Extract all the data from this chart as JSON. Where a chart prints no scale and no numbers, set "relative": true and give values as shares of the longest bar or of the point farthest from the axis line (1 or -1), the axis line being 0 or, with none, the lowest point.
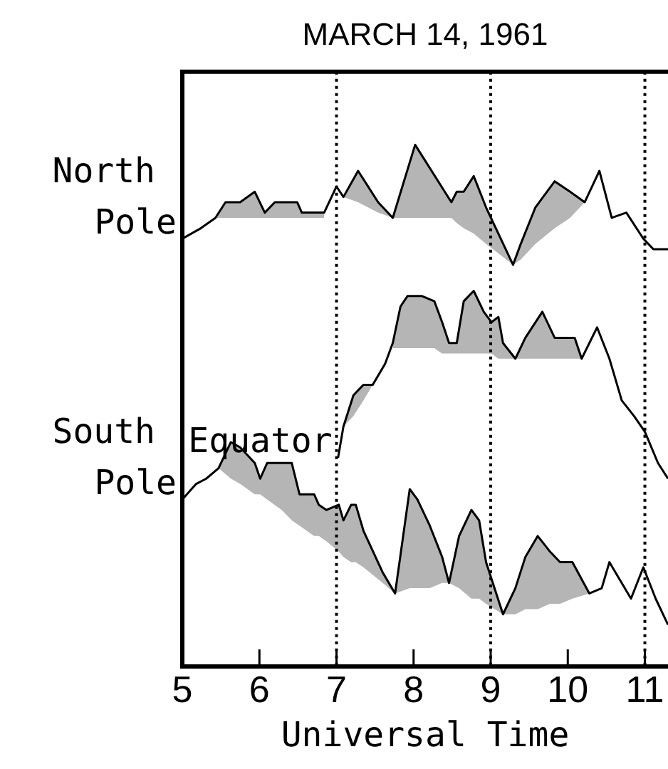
{
  "chart_data": {
    "type": "line",
    "title": "MARCH 14, 1961",
    "xlabel": "Universal Time",
    "relative": true,
    "xlim": [
      5,
      11.3
    ],
    "xticks": [
      5,
      6,
      7,
      8,
      9,
      10,
      11
    ],
    "legend": false,
    "line_style": "solid",
    "ref_lines": [
      {
        "axis": "x",
        "value": 7,
        "line_style": "dotted",
        "color": "#000000"
      },
      {
        "axis": "x",
        "value": 9,
        "line_style": "dotted",
        "color": "#000000"
      },
      {
        "axis": "x",
        "value": 11,
        "line_style": "dotted",
        "color": "#000000"
      }
    ],
    "series": [
      {
        "name": "North Pole",
        "color": "#000000",
        "x": [
          5.0,
          5.24,
          5.43,
          5.56,
          5.75,
          5.94,
          6.07,
          6.2,
          6.42,
          6.49,
          6.55,
          6.71,
          6.84,
          7.0,
          7.09,
          7.28,
          7.54,
          7.73,
          8.02,
          8.49,
          8.56,
          8.65,
          8.78,
          8.94,
          9.29,
          9.39,
          9.58,
          9.83,
          10.03,
          10.22,
          10.41,
          10.57,
          10.76,
          10.98,
          11.11,
          11.3
        ],
        "values": [
          0.82,
          0.84,
          0.86,
          0.89,
          0.89,
          0.91,
          0.87,
          0.89,
          0.89,
          0.89,
          0.87,
          0.87,
          0.87,
          0.92,
          0.9,
          0.95,
          0.89,
          0.86,
          1.0,
          0.89,
          0.91,
          0.91,
          0.94,
          0.88,
          0.77,
          0.81,
          0.88,
          0.93,
          0.91,
          0.89,
          0.95,
          0.86,
          0.87,
          0.82,
          0.8,
          0.8
        ],
        "lower": [
          null,
          null,
          0.86,
          0.86,
          0.86,
          0.86,
          0.86,
          0.86,
          0.86,
          0.86,
          0.86,
          0.86,
          0.86,
          null,
          0.9,
          0.89,
          0.87,
          0.86,
          0.86,
          0.86,
          0.85,
          0.84,
          0.83,
          0.81,
          0.77,
          0.78,
          0.81,
          0.84,
          0.86,
          0.89,
          null,
          null,
          null,
          null,
          null,
          null
        ],
        "upper": [
          null,
          null,
          0.86,
          0.89,
          0.89,
          0.91,
          0.87,
          0.89,
          0.89,
          0.89,
          0.87,
          0.87,
          0.87,
          null,
          0.9,
          0.95,
          0.89,
          0.86,
          1.0,
          0.89,
          0.91,
          0.91,
          0.94,
          0.88,
          0.77,
          0.81,
          0.88,
          0.93,
          0.91,
          0.89,
          null,
          null,
          null,
          null,
          null,
          null
        ]
      },
      {
        "name": "Equator",
        "color": "#000000",
        "x": [
          7.02,
          7.09,
          7.22,
          7.35,
          7.47,
          7.63,
          7.73,
          7.83,
          7.92,
          8.11,
          8.27,
          8.37,
          8.46,
          8.56,
          8.65,
          8.78,
          8.91,
          9.01,
          9.1,
          9.16,
          9.32,
          9.45,
          9.67,
          9.83,
          10.03,
          10.09,
          10.18,
          10.38,
          10.54,
          10.7,
          10.86,
          11.0,
          11.17,
          11.3
        ],
        "values": [
          0.4,
          0.46,
          0.52,
          0.54,
          0.54,
          0.58,
          0.62,
          0.69,
          0.71,
          0.71,
          0.7,
          0.66,
          0.62,
          0.62,
          0.7,
          0.72,
          0.68,
          0.66,
          0.67,
          0.62,
          0.59,
          0.63,
          0.68,
          0.63,
          0.63,
          0.63,
          0.59,
          0.65,
          0.59,
          0.51,
          0.48,
          0.45,
          0.39,
          0.36
        ],
        "lower": [
          null,
          0.46,
          0.48,
          0.51,
          0.54,
          null,
          0.61,
          0.61,
          0.61,
          0.61,
          0.61,
          0.6,
          0.6,
          0.6,
          0.6,
          0.6,
          0.6,
          0.6,
          0.59,
          0.59,
          0.59,
          0.59,
          0.59,
          0.59,
          0.59,
          0.59,
          0.59,
          null,
          null,
          null,
          null,
          null,
          null,
          null
        ],
        "upper": [
          null,
          0.46,
          0.52,
          0.54,
          0.54,
          null,
          0.62,
          0.69,
          0.71,
          0.71,
          0.7,
          0.66,
          0.62,
          0.62,
          0.7,
          0.72,
          0.68,
          0.66,
          0.67,
          0.62,
          0.59,
          0.63,
          0.68,
          0.63,
          0.63,
          0.63,
          0.59,
          null,
          null,
          null,
          null,
          null,
          null,
          null
        ]
      },
      {
        "name": "South Pole",
        "color": "#000000",
        "x": [
          5.0,
          5.18,
          5.31,
          5.47,
          5.63,
          5.75,
          5.94,
          6.01,
          6.1,
          6.29,
          6.42,
          6.52,
          6.71,
          6.77,
          6.87,
          7.03,
          7.09,
          7.19,
          7.25,
          7.35,
          7.6,
          7.76,
          7.95,
          8.05,
          8.21,
          8.37,
          8.46,
          8.59,
          8.75,
          8.85,
          8.94,
          9.16,
          9.32,
          9.45,
          9.61,
          9.77,
          9.9,
          10.06,
          10.28,
          10.44,
          10.54,
          10.66,
          10.82,
          10.98,
          11.14,
          11.3
        ],
        "values": [
          0.32,
          0.35,
          0.36,
          0.38,
          0.43,
          0.42,
          0.39,
          0.36,
          0.39,
          0.39,
          0.39,
          0.33,
          0.33,
          0.31,
          0.3,
          0.31,
          0.28,
          0.31,
          0.31,
          0.26,
          0.18,
          0.14,
          0.34,
          0.32,
          0.27,
          0.21,
          0.16,
          0.25,
          0.3,
          0.28,
          0.2,
          0.1,
          0.15,
          0.21,
          0.25,
          0.22,
          0.2,
          0.2,
          0.14,
          0.15,
          0.2,
          0.17,
          0.13,
          0.19,
          0.13,
          0.08
        ],
        "lower": [
          null,
          null,
          null,
          0.38,
          0.36,
          0.35,
          0.33,
          0.33,
          0.32,
          0.3,
          0.28,
          0.27,
          0.25,
          0.25,
          0.24,
          0.22,
          0.21,
          0.2,
          0.2,
          0.19,
          0.16,
          0.14,
          0.15,
          0.15,
          0.15,
          0.16,
          0.16,
          0.15,
          0.13,
          0.13,
          0.12,
          0.1,
          0.1,
          0.11,
          0.11,
          0.12,
          0.12,
          0.13,
          0.14,
          null,
          null,
          null,
          null,
          null,
          null,
          null
        ],
        "upper": [
          null,
          null,
          null,
          0.38,
          0.43,
          0.42,
          0.39,
          0.36,
          0.39,
          0.39,
          0.39,
          0.33,
          0.33,
          0.31,
          0.3,
          0.31,
          0.28,
          0.31,
          0.31,
          0.26,
          0.18,
          0.14,
          0.34,
          0.32,
          0.27,
          0.21,
          0.16,
          0.25,
          0.3,
          0.28,
          0.2,
          0.1,
          0.15,
          0.21,
          0.25,
          0.22,
          0.2,
          0.2,
          0.14,
          null,
          null,
          null,
          null,
          null,
          null,
          null
        ]
      }
    ]
  }
}
